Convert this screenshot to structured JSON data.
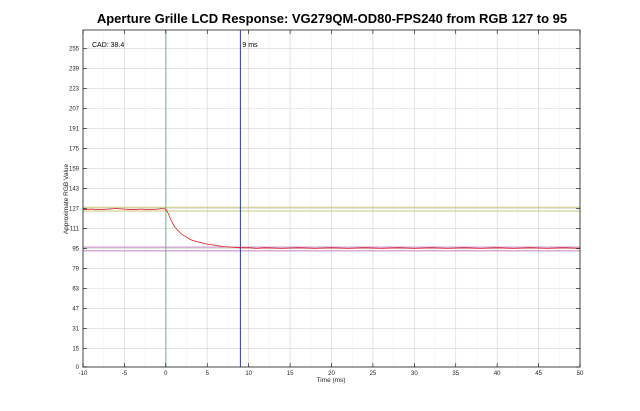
{
  "chart_data": {
    "type": "line",
    "title": "Aperture Grille LCD Response: VG279QM-OD80-FPS240 from RGB 127 to 95",
    "xlabel": "Time (ms)",
    "ylabel": "Approximate RGB Value",
    "xlim": [
      -10,
      50
    ],
    "ylim": [
      0,
      270
    ],
    "xticks": [
      -10,
      -5,
      0,
      5,
      10,
      15,
      20,
      25,
      30,
      35,
      40,
      45,
      50
    ],
    "yticks": [
      0,
      15,
      31,
      47,
      63,
      79,
      95,
      111,
      127,
      143,
      159,
      175,
      191,
      207,
      223,
      239,
      255
    ],
    "grid": true,
    "annotations": {
      "cad": "CAD: 38.4",
      "marker": "9 ms"
    },
    "vertical_lines": [
      {
        "x": 0,
        "color": "#4fc08d"
      },
      {
        "x": 9,
        "color": "#2a3aa8"
      }
    ],
    "horizontal_lines": [
      {
        "y": 128,
        "color": "#c8c878"
      },
      {
        "y": 125,
        "color": "#c8c878"
      },
      {
        "y": 96,
        "color": "#c080c0"
      },
      {
        "y": 93,
        "color": "#c080c0"
      }
    ],
    "series": [
      {
        "color": "#e02020",
        "x": [
          -10,
          -9,
          -8,
          -7,
          -6,
          -5,
          -4,
          -3,
          -2,
          -1,
          -0.5,
          0,
          0.3,
          0.6,
          1,
          1.5,
          2,
          2.5,
          3,
          4,
          5,
          6,
          7,
          8,
          9,
          10,
          11,
          12,
          14,
          16,
          18,
          20,
          22,
          24,
          26,
          28,
          30,
          32,
          34,
          36,
          38,
          40,
          42,
          44,
          46,
          48,
          50
        ],
        "y": [
          126,
          126.5,
          126,
          126.5,
          127,
          126.5,
          126,
          126.5,
          126,
          126.5,
          127,
          126.5,
          123,
          118,
          113,
          109,
          106,
          104,
          102,
          100,
          98.5,
          97.5,
          96.5,
          96,
          95.5,
          95.5,
          95,
          95.5,
          95,
          95.5,
          95,
          95.5,
          95,
          95.5,
          95,
          95.5,
          95,
          95.5,
          95,
          95.5,
          95,
          95.5,
          95,
          95.5,
          95,
          95.5,
          95
        ]
      }
    ]
  }
}
